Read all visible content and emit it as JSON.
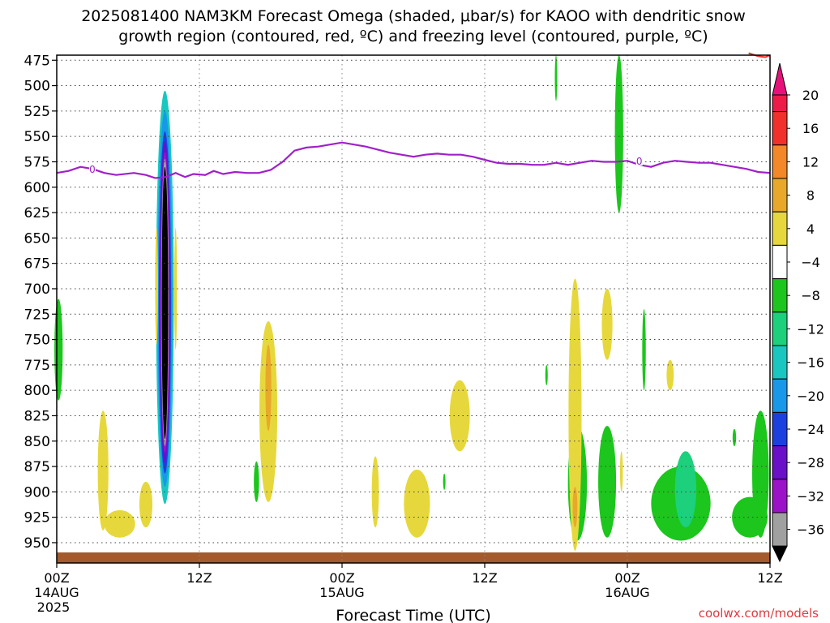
{
  "chart_data": {
    "type": "heatmap",
    "title_line1": "2025081400 NAM3KM Forecast Omega (shaded, μbar/s) for KAOO with dendritic snow",
    "title_line2": "growth region (contoured, red, ºC) and freezing level (contoured, purple, ºC)",
    "xlabel": "Forecast Time (UTC)",
    "credit": "coolwx.com/models",
    "y_axis": {
      "reversed": true,
      "range": [
        470,
        970
      ],
      "ticks": [
        475,
        500,
        525,
        550,
        575,
        600,
        625,
        650,
        675,
        700,
        725,
        750,
        775,
        800,
        825,
        850,
        875,
        900,
        925,
        950
      ]
    },
    "x_axis": {
      "range_hours": [
        0,
        60
      ],
      "ticks": [
        {
          "hour": 0,
          "label": "00Z",
          "sub1": "14AUG",
          "sub2": "2025"
        },
        {
          "hour": 12,
          "label": "12Z",
          "sub1": "",
          "sub2": ""
        },
        {
          "hour": 24,
          "label": "00Z",
          "sub1": "15AUG",
          "sub2": ""
        },
        {
          "hour": 36,
          "label": "12Z",
          "sub1": "",
          "sub2": ""
        },
        {
          "hour": 48,
          "label": "00Z",
          "sub1": "16AUG",
          "sub2": ""
        },
        {
          "hour": 60,
          "label": "12Z",
          "sub1": "",
          "sub2": ""
        }
      ]
    },
    "grid": true,
    "colorbar": {
      "labels": [
        "20",
        "16",
        "12",
        "8",
        "4",
        "−4",
        "−8",
        "−12",
        "−16",
        "−20",
        "−24",
        "−28",
        "−32",
        "−36"
      ],
      "colors": [
        "#ee1a48",
        "#f1302c",
        "#f28828",
        "#e8a92a",
        "#e6d83c",
        "#ffffff",
        "#1cc61c",
        "#1cd07c",
        "#18c8c0",
        "#1898e8",
        "#1c40e0",
        "#6a10c8",
        "#9c12c8",
        "#a0a0a0",
        "#000000"
      ],
      "top_arrow_color": "#e6127a"
    },
    "freezing_level_label": "0",
    "freezing_level": [
      [
        0,
        586
      ],
      [
        1,
        584
      ],
      [
        2,
        580
      ],
      [
        3,
        582
      ],
      [
        4,
        586
      ],
      [
        5,
        588
      ],
      [
        6.5,
        586
      ],
      [
        7.5,
        588
      ],
      [
        8.3,
        591
      ],
      [
        9.2,
        590
      ],
      [
        10,
        586
      ],
      [
        10.8,
        590
      ],
      [
        11.5,
        587
      ],
      [
        12.5,
        588
      ],
      [
        13.2,
        584
      ],
      [
        14,
        587
      ],
      [
        15,
        585
      ],
      [
        16,
        586
      ],
      [
        17,
        586
      ],
      [
        18,
        583
      ],
      [
        19,
        575
      ],
      [
        20,
        564
      ],
      [
        21,
        561
      ],
      [
        22,
        560
      ],
      [
        23,
        558
      ],
      [
        24,
        556
      ],
      [
        25,
        558
      ],
      [
        26,
        560
      ],
      [
        27,
        563
      ],
      [
        28,
        566
      ],
      [
        29,
        568
      ],
      [
        30,
        570
      ],
      [
        31,
        568
      ],
      [
        32,
        567
      ],
      [
        33,
        568
      ],
      [
        34,
        568
      ],
      [
        35,
        570
      ],
      [
        36,
        573
      ],
      [
        37,
        576
      ],
      [
        38,
        577
      ],
      [
        39,
        577
      ],
      [
        40,
        578
      ],
      [
        41,
        578
      ],
      [
        42,
        576
      ],
      [
        43,
        578
      ],
      [
        44,
        576
      ],
      [
        45,
        574
      ],
      [
        46,
        575
      ],
      [
        47,
        575
      ],
      [
        48,
        574
      ],
      [
        49,
        578
      ],
      [
        50,
        580
      ],
      [
        51,
        576
      ],
      [
        52,
        574
      ],
      [
        53,
        575
      ],
      [
        54,
        576
      ],
      [
        55,
        576
      ],
      [
        56,
        578
      ],
      [
        57,
        580
      ],
      [
        58,
        582
      ],
      [
        59,
        585
      ],
      [
        60,
        586
      ]
    ],
    "dendritic_red": [
      [
        58.2,
        468
      ],
      [
        59,
        471
      ],
      [
        59.6,
        472
      ],
      [
        60,
        470
      ]
    ],
    "omega_regions": [
      {
        "hour": 9.1,
        "p_top": 505,
        "p_bot": 912,
        "hw": 0.75,
        "level": 8
      },
      {
        "hour": 9.1,
        "p_top": 525,
        "p_bot": 895,
        "hw": 0.62,
        "level": 9
      },
      {
        "hour": 9.1,
        "p_top": 545,
        "p_bot": 882,
        "hw": 0.52,
        "level": 10
      },
      {
        "hour": 9.1,
        "p_top": 555,
        "p_bot": 872,
        "hw": 0.45,
        "level": 11
      },
      {
        "hour": 9.1,
        "p_top": 565,
        "p_bot": 862,
        "hw": 0.38,
        "level": 12
      },
      {
        "hour": 9.1,
        "p_top": 572,
        "p_bot": 855,
        "hw": 0.32,
        "level": 13
      },
      {
        "hour": 9.1,
        "p_top": 580,
        "p_bot": 848,
        "hw": 0.27,
        "level": 14
      },
      {
        "hour": 8.4,
        "p_top": 640,
        "p_bot": 755,
        "hw": 0.12,
        "level": 4
      },
      {
        "hour": 10.0,
        "p_top": 640,
        "p_bot": 760,
        "hw": 0.12,
        "level": 4
      },
      {
        "hour": 0.15,
        "p_top": 710,
        "p_bot": 810,
        "hw": 0.35,
        "level": 6
      },
      {
        "hour": 3.9,
        "p_top": 820,
        "p_bot": 938,
        "hw": 0.45,
        "level": 4
      },
      {
        "hour": 5.3,
        "p_top": 918,
        "p_bot": 945,
        "hw": 1.3,
        "level": 4
      },
      {
        "hour": 7.5,
        "p_top": 890,
        "p_bot": 935,
        "hw": 0.55,
        "level": 4
      },
      {
        "hour": 17.8,
        "p_top": 732,
        "p_bot": 910,
        "hw": 0.75,
        "level": 4
      },
      {
        "hour": 17.8,
        "p_top": 755,
        "p_bot": 840,
        "hw": 0.25,
        "level": 3
      },
      {
        "hour": 16.8,
        "p_top": 870,
        "p_bot": 910,
        "hw": 0.22,
        "level": 6
      },
      {
        "hour": 26.8,
        "p_top": 865,
        "p_bot": 935,
        "hw": 0.3,
        "level": 4
      },
      {
        "hour": 30.3,
        "p_top": 878,
        "p_bot": 945,
        "hw": 1.1,
        "level": 4
      },
      {
        "hour": 33.9,
        "p_top": 790,
        "p_bot": 860,
        "hw": 0.85,
        "level": 4
      },
      {
        "hour": 32.6,
        "p_top": 882,
        "p_bot": 898,
        "hw": 0.08,
        "level": 6
      },
      {
        "hour": 43.8,
        "p_top": 835,
        "p_bot": 948,
        "hw": 0.8,
        "level": 6
      },
      {
        "hour": 43.6,
        "p_top": 690,
        "p_bot": 958,
        "hw": 0.55,
        "level": 4
      },
      {
        "hour": 43.6,
        "p_top": 895,
        "p_bot": 935,
        "hw": 0.2,
        "level": 3
      },
      {
        "hour": 41.2,
        "p_top": 775,
        "p_bot": 795,
        "hw": 0.06,
        "level": 6
      },
      {
        "hour": 42.0,
        "p_top": 470,
        "p_bot": 515,
        "hw": 0.1,
        "level": 6
      },
      {
        "hour": 46.3,
        "p_top": 835,
        "p_bot": 945,
        "hw": 0.75,
        "level": 6
      },
      {
        "hour": 46.3,
        "p_top": 700,
        "p_bot": 770,
        "hw": 0.45,
        "level": 4
      },
      {
        "hour": 47.5,
        "p_top": 860,
        "p_bot": 900,
        "hw": 0.12,
        "level": 4
      },
      {
        "hour": 47.3,
        "p_top": 470,
        "p_bot": 625,
        "hw": 0.35,
        "level": 6
      },
      {
        "hour": 49.4,
        "p_top": 720,
        "p_bot": 800,
        "hw": 0.15,
        "level": 6
      },
      {
        "hour": 51.6,
        "p_top": 770,
        "p_bot": 800,
        "hw": 0.3,
        "level": 4
      },
      {
        "hour": 52.5,
        "p_top": 875,
        "p_bot": 948,
        "hw": 2.5,
        "level": 6
      },
      {
        "hour": 52.9,
        "p_top": 860,
        "p_bot": 935,
        "hw": 0.9,
        "level": 7
      },
      {
        "hour": 57.0,
        "p_top": 838,
        "p_bot": 855,
        "hw": 0.15,
        "level": 6
      },
      {
        "hour": 59.2,
        "p_top": 820,
        "p_bot": 945,
        "hw": 0.7,
        "level": 6
      },
      {
        "hour": 58.3,
        "p_top": 905,
        "p_bot": 945,
        "hw": 1.5,
        "level": 6
      }
    ]
  }
}
